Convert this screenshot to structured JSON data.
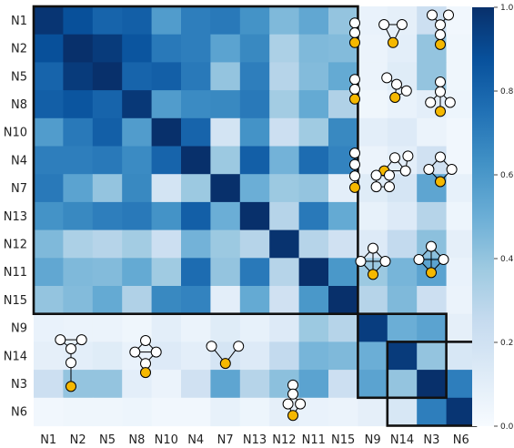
{
  "chart_data": {
    "type": "heatmap",
    "title": "",
    "xlabel": "",
    "ylabel": "",
    "labels": [
      "N1",
      "N2",
      "N5",
      "N8",
      "N10",
      "N4",
      "N7",
      "N13",
      "N12",
      "N11",
      "N15",
      "N9",
      "N14",
      "N3",
      "N6"
    ],
    "colorbar": {
      "min": 0.0,
      "max": 1.0,
      "ticks": [
        "0.0",
        "0.2",
        "0.4",
        "0.6",
        "0.8",
        "1.0"
      ],
      "colormap": "Blues"
    },
    "values": [
      [
        0.98,
        0.88,
        0.8,
        0.82,
        0.58,
        0.7,
        0.72,
        0.62,
        0.45,
        0.53,
        0.4,
        0.07,
        0.09,
        0.22,
        0.03
      ],
      [
        0.88,
        1.0,
        0.96,
        0.86,
        0.72,
        0.7,
        0.55,
        0.66,
        0.33,
        0.45,
        0.44,
        0.06,
        0.1,
        0.4,
        0.04
      ],
      [
        0.8,
        0.96,
        1.0,
        0.8,
        0.82,
        0.72,
        0.4,
        0.7,
        0.3,
        0.44,
        0.52,
        0.06,
        0.12,
        0.4,
        0.04
      ],
      [
        0.82,
        0.86,
        0.8,
        0.97,
        0.58,
        0.65,
        0.66,
        0.72,
        0.36,
        0.52,
        0.32,
        0.04,
        0.07,
        0.1,
        0.05
      ],
      [
        0.58,
        0.72,
        0.82,
        0.58,
        1.0,
        0.8,
        0.18,
        0.62,
        0.22,
        0.37,
        0.66,
        0.1,
        0.13,
        0.06,
        0.03
      ],
      [
        0.7,
        0.7,
        0.72,
        0.65,
        0.8,
        1.0,
        0.38,
        0.82,
        0.48,
        0.77,
        0.68,
        0.06,
        0.1,
        0.2,
        0.03
      ],
      [
        0.72,
        0.55,
        0.4,
        0.66,
        0.18,
        0.38,
        1.0,
        0.5,
        0.38,
        0.4,
        0.1,
        0.12,
        0.17,
        0.54,
        0.08
      ],
      [
        0.62,
        0.66,
        0.7,
        0.72,
        0.62,
        0.82,
        0.5,
        1.0,
        0.3,
        0.72,
        0.52,
        0.08,
        0.13,
        0.3,
        0.05
      ],
      [
        0.45,
        0.33,
        0.3,
        0.36,
        0.22,
        0.48,
        0.38,
        0.3,
        0.99,
        0.3,
        0.2,
        0.13,
        0.26,
        0.42,
        0.09
      ],
      [
        0.53,
        0.45,
        0.44,
        0.52,
        0.37,
        0.77,
        0.4,
        0.72,
        0.3,
        1.0,
        0.6,
        0.38,
        0.47,
        0.55,
        0.07
      ],
      [
        0.4,
        0.44,
        0.52,
        0.32,
        0.66,
        0.68,
        0.1,
        0.52,
        0.2,
        0.6,
        1.0,
        0.3,
        0.45,
        0.22,
        0.06
      ],
      [
        0.07,
        0.06,
        0.06,
        0.04,
        0.1,
        0.06,
        0.12,
        0.08,
        0.13,
        0.38,
        0.3,
        0.95,
        0.5,
        0.55,
        0.09
      ],
      [
        0.09,
        0.1,
        0.12,
        0.07,
        0.13,
        0.1,
        0.17,
        0.13,
        0.26,
        0.47,
        0.45,
        0.5,
        0.96,
        0.4,
        0.16
      ],
      [
        0.22,
        0.4,
        0.4,
        0.1,
        0.06,
        0.2,
        0.54,
        0.3,
        0.42,
        0.55,
        0.22,
        0.55,
        0.4,
        1.0,
        0.7
      ],
      [
        0.03,
        0.04,
        0.04,
        0.05,
        0.03,
        0.03,
        0.08,
        0.05,
        0.09,
        0.07,
        0.06,
        0.09,
        0.16,
        0.7,
        0.98
      ]
    ],
    "cluster_boxes": [
      {
        "from": "N1",
        "to": "N15"
      },
      {
        "from": "N9",
        "to": "N3"
      },
      {
        "from": "N14",
        "to": "N6"
      }
    ],
    "node_color": "#f5b800"
  }
}
